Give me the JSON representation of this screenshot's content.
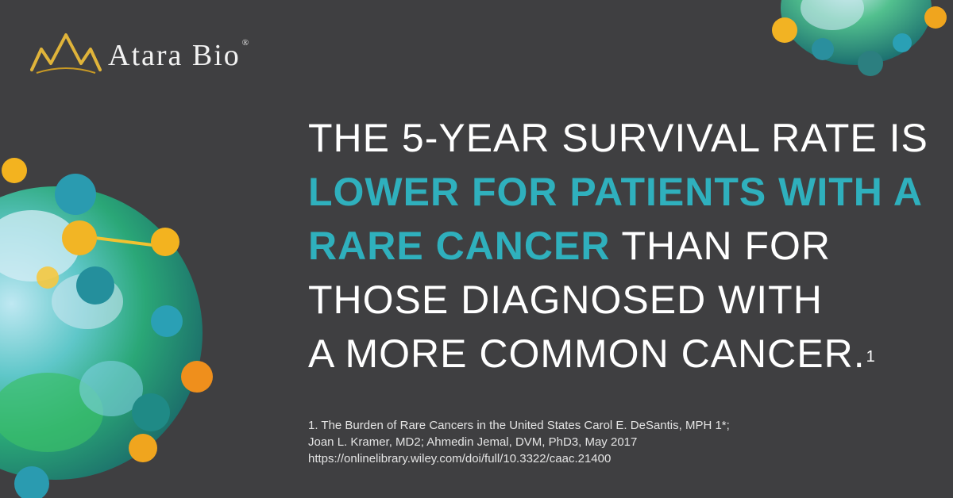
{
  "brand": {
    "name": "Atara Bio",
    "reg_mark": "®",
    "logo_icon": "crown-icon"
  },
  "headline": {
    "line1": "THE 5-YEAR SURVIVAL RATE IS",
    "line2_accent": "LOWER FOR PATIENTS WITH A",
    "line3_accent": "RARE CANCER",
    "line3_rest": " THAN FOR",
    "line4": "THOSE DIAGNOSED WITH",
    "line5": "A MORE COMMON CANCER.",
    "footnote_marker": "1"
  },
  "footnote": {
    "line1": "1. The Burden of Rare Cancers in the United States Carol E. DeSantis, MPH 1*;",
    "line2": "Joan L. Kramer, MD2; Ahmedin Jemal, DVM, PhD3, May 2017",
    "line3": "https://onlinelibrary.wiley.com/doi/full/10.3322/caac.21400"
  },
  "colors": {
    "background": "#3f3f41",
    "accent": "#2fb0bd",
    "text": "#ffffff",
    "logo_gold": "#e0b43a"
  },
  "images": [
    "virus-illustration-left",
    "virus-illustration-top-right"
  ]
}
